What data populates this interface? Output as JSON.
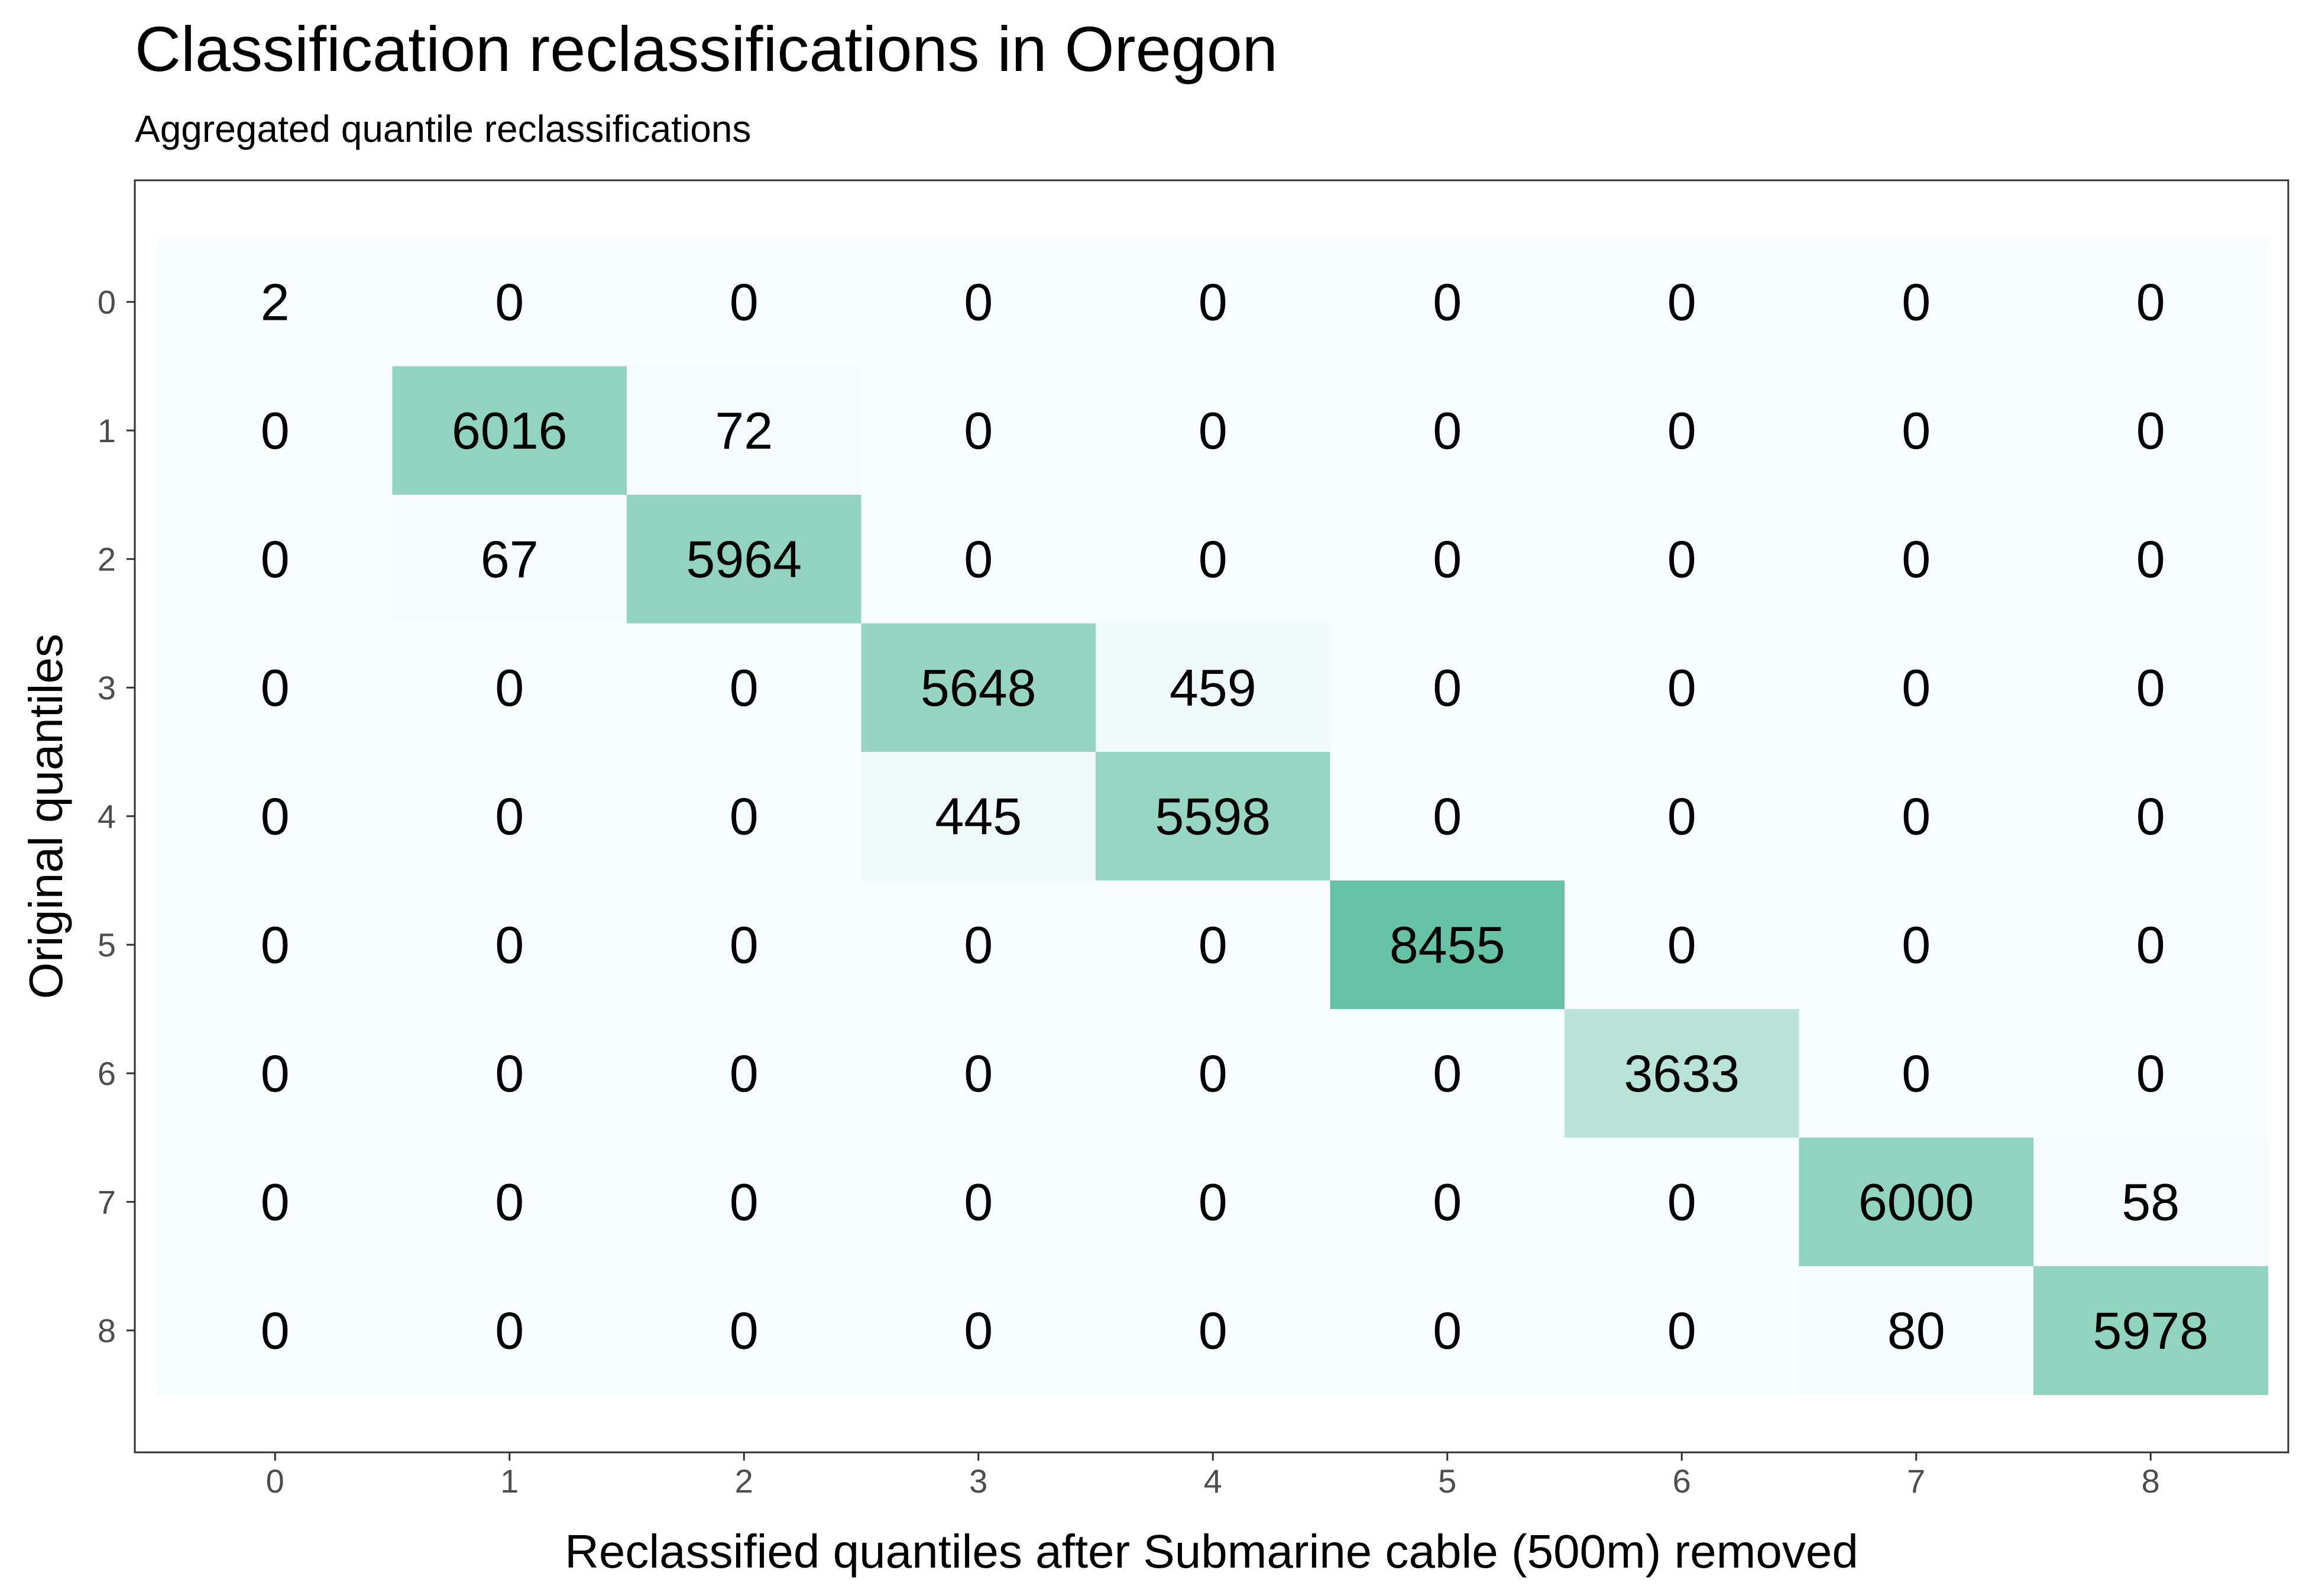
{
  "chart_data": {
    "type": "heatmap",
    "title": "Classification reclassifications in Oregon",
    "subtitle": "Aggregated quantile reclassifications",
    "xlabel": "Reclassified quantiles after Submarine cable (500m) removed",
    "ylabel": "Original quantiles",
    "x_categories": [
      "0",
      "1",
      "2",
      "3",
      "4",
      "5",
      "6",
      "7",
      "8"
    ],
    "y_categories": [
      "0",
      "1",
      "2",
      "3",
      "4",
      "5",
      "6",
      "7",
      "8"
    ],
    "values": [
      [
        2,
        0,
        0,
        0,
        0,
        0,
        0,
        0,
        0
      ],
      [
        0,
        6016,
        72,
        0,
        0,
        0,
        0,
        0,
        0
      ],
      [
        0,
        67,
        5964,
        0,
        0,
        0,
        0,
        0,
        0
      ],
      [
        0,
        0,
        0,
        5648,
        459,
        0,
        0,
        0,
        0
      ],
      [
        0,
        0,
        0,
        445,
        5598,
        0,
        0,
        0,
        0
      ],
      [
        0,
        0,
        0,
        0,
        0,
        8455,
        0,
        0,
        0
      ],
      [
        0,
        0,
        0,
        0,
        0,
        0,
        3633,
        0,
        0
      ],
      [
        0,
        0,
        0,
        0,
        0,
        0,
        0,
        6000,
        58
      ],
      [
        0,
        0,
        0,
        0,
        0,
        0,
        0,
        80,
        5978
      ]
    ],
    "color_low": "#f7fcfd",
    "color_high": "#66c2a4",
    "grid": false,
    "legend": "none"
  }
}
